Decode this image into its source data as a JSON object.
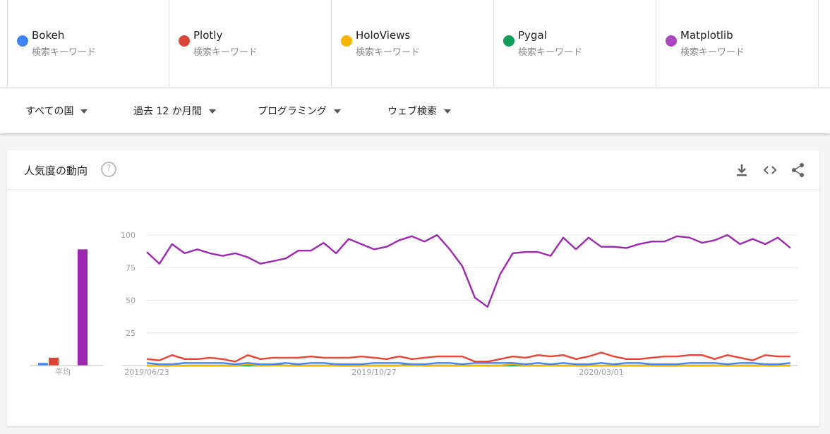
{
  "terms": [
    {
      "name": "Bokeh",
      "sub": "検索キーワード",
      "color": "#4285f4"
    },
    {
      "name": "Plotly",
      "sub": "検索キーワード",
      "color": "#db4437"
    },
    {
      "name": "HoloViews",
      "sub": "検索キーワード",
      "color": "#f4b400"
    },
    {
      "name": "Pygal",
      "sub": "検索キーワード",
      "color": "#0f9d58"
    },
    {
      "name": "Matplotlib",
      "sub": "検索キーワード",
      "color": "#ab47bc"
    }
  ],
  "filters": {
    "region": "すべての国",
    "period": "過去 12 か月間",
    "category": "プログラミング",
    "search_type": "ウェブ検索"
  },
  "card": {
    "title": "人気度の動向",
    "help": "?"
  },
  "chart_data": {
    "type": "line",
    "y_ticks": [
      "100",
      "75",
      "50",
      "25"
    ],
    "x_labels": [
      "2019/06/23",
      "2019/10/27",
      "2020/03/01"
    ],
    "ylim": [
      0,
      100
    ],
    "average_label": "平均",
    "averages": [
      {
        "name": "Bokeh",
        "value": 2,
        "color": "#4285f4"
      },
      {
        "name": "Plotly",
        "value": 6,
        "color": "#db4437"
      },
      {
        "name": "HoloViews",
        "value": 0,
        "color": "#f4b400"
      },
      {
        "name": "Pygal",
        "value": 0,
        "color": "#0f9d58"
      },
      {
        "name": "Matplotlib",
        "value": 89,
        "color": "#9c27b0"
      }
    ],
    "series": [
      {
        "name": "Matplotlib",
        "color": "#9c27b0",
        "values": [
          87,
          78,
          93,
          86,
          89,
          86,
          84,
          86,
          83,
          78,
          80,
          82,
          88,
          88,
          94,
          86,
          97,
          93,
          89,
          91,
          96,
          99,
          95,
          100,
          89,
          76,
          52,
          45,
          70,
          86,
          87,
          87,
          84,
          98,
          89,
          98,
          91,
          91,
          90,
          93,
          95,
          95,
          99,
          98,
          94,
          96,
          100,
          93,
          97,
          93,
          98,
          90
        ]
      },
      {
        "name": "Plotly",
        "color": "#ea4335",
        "values": [
          5,
          4,
          8,
          5,
          5,
          6,
          5,
          3,
          8,
          5,
          6,
          6,
          6,
          7,
          6,
          6,
          6,
          7,
          6,
          5,
          7,
          5,
          6,
          7,
          7,
          7,
          3,
          3,
          5,
          7,
          6,
          8,
          7,
          8,
          5,
          7,
          10,
          7,
          5,
          5,
          6,
          7,
          7,
          8,
          8,
          5,
          8,
          6,
          4,
          8,
          7,
          7
        ]
      },
      {
        "name": "Bokeh",
        "color": "#4285f4",
        "values": [
          2,
          1,
          1,
          2,
          2,
          2,
          2,
          1,
          2,
          1,
          1,
          2,
          1,
          2,
          2,
          1,
          1,
          1,
          2,
          2,
          2,
          1,
          1,
          2,
          2,
          1,
          2,
          2,
          2,
          2,
          1,
          2,
          1,
          2,
          1,
          1,
          2,
          1,
          2,
          2,
          1,
          1,
          1,
          2,
          2,
          2,
          1,
          2,
          2,
          1,
          1,
          2
        ]
      },
      {
        "name": "HoloViews",
        "color": "#f4b400",
        "values": [
          0,
          0,
          0,
          0,
          0,
          0,
          0,
          0,
          1,
          0,
          0,
          0,
          0,
          0,
          0,
          0,
          0,
          0,
          0,
          0,
          0,
          0,
          0,
          0,
          0,
          0,
          0,
          0,
          0,
          1,
          0,
          0,
          0,
          0,
          0,
          0,
          0,
          0,
          0,
          0,
          0,
          0,
          0,
          0,
          0,
          0,
          0,
          0,
          0,
          0,
          0,
          0
        ]
      },
      {
        "name": "Pygal",
        "color": "#0f9d58",
        "values": [
          0,
          0,
          0,
          0,
          0,
          0,
          0,
          0,
          0,
          0,
          1,
          0,
          0,
          0,
          0,
          0,
          0,
          0,
          0,
          0,
          0,
          1,
          0,
          0,
          0,
          0,
          0,
          0,
          0,
          0,
          0,
          0,
          0,
          0,
          0,
          0,
          0,
          0,
          0,
          0,
          0,
          0,
          0,
          0,
          0,
          0,
          0,
          0,
          0,
          0,
          0,
          0
        ]
      }
    ]
  }
}
